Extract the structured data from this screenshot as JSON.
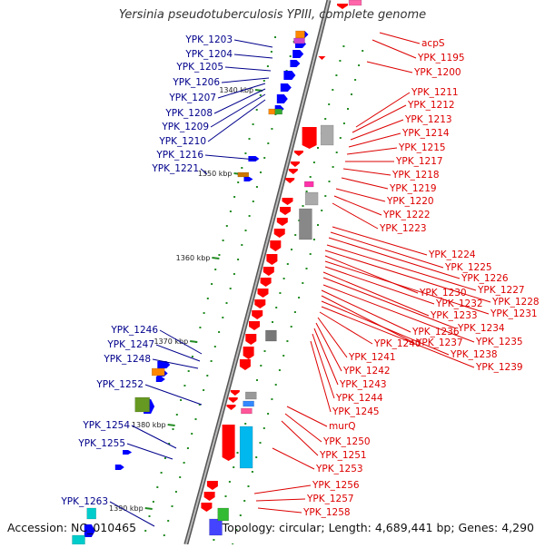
{
  "title": "Yersinia pseudotuberculosis YPIII, complete genome",
  "footer": {
    "accession": "Accession: NC_010465",
    "topology": "Topology: circular; Length: 4,689,441 bp; Genes: 4,290"
  },
  "colors": {
    "forward_label": "#00008b",
    "reverse_label": "#dd0000",
    "forward_gene": "#0000ff",
    "reverse_gene": "#ff0000",
    "backbone": "#888888",
    "tick": "#228b22"
  },
  "scale_labels": [
    "1340 kbp",
    "1350 kbp",
    "1360 kbp",
    "1370 kbp",
    "1380 kbp",
    "1390 kbp"
  ],
  "forward_labels": [
    "YPK_1203",
    "YPK_1204",
    "YPK_1205",
    "YPK_1206",
    "YPK_1207",
    "YPK_1208",
    "YPK_1209",
    "YPK_1210",
    "YPK_1216",
    "YPK_1221",
    "YPK_1246",
    "YPK_1247",
    "YPK_1248",
    "YPK_1252",
    "YPK_1254",
    "YPK_1255",
    "YPK_1263"
  ],
  "reverse_labels": [
    "acpS",
    "YPK_1195",
    "YPK_1200",
    "YPK_1211",
    "YPK_1212",
    "YPK_1213",
    "YPK_1214",
    "YPK_1215",
    "YPK_1217",
    "YPK_1218",
    "YPK_1219",
    "YPK_1220",
    "YPK_1222",
    "YPK_1223",
    "YPK_1224",
    "YPK_1225",
    "YPK_1226",
    "YPK_1227",
    "YPK_1228",
    "YPK_1230",
    "YPK_1231",
    "YPK_1232",
    "YPK_1233",
    "YPK_1234",
    "YPK_1235",
    "YPK_1236",
    "YPK_1237",
    "YPK_1238",
    "YPK_1239",
    "YPK_1240",
    "YPK_1241",
    "YPK_1242",
    "YPK_1243",
    "YPK_1244",
    "YPK_1245",
    "murQ",
    "YPK_1250",
    "YPK_1251",
    "YPK_1253",
    "YPK_1256",
    "YPK_1257",
    "YPK_1258"
  ]
}
